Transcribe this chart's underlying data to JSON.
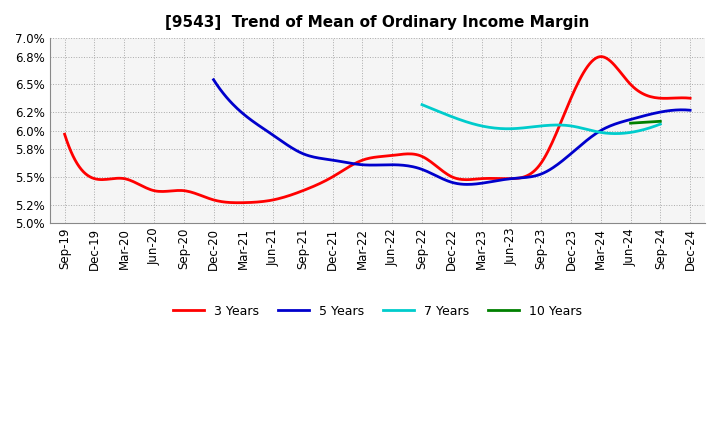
{
  "title": "[9543]  Trend of Mean of Ordinary Income Margin",
  "ylim": [
    0.05,
    0.07
  ],
  "yticks": [
    0.05,
    0.052,
    0.055,
    0.058,
    0.06,
    0.062,
    0.065,
    0.068,
    0.07
  ],
  "ytick_labels": [
    "5.0%",
    "5.2%",
    "5.5%",
    "5.8%",
    "6.0%",
    "6.2%",
    "6.5%",
    "6.8%",
    "7.0%"
  ],
  "x_labels": [
    "Sep-19",
    "Dec-19",
    "Mar-20",
    "Jun-20",
    "Sep-20",
    "Dec-20",
    "Mar-21",
    "Jun-21",
    "Sep-21",
    "Dec-21",
    "Mar-22",
    "Jun-22",
    "Sep-22",
    "Dec-22",
    "Mar-23",
    "Jun-23",
    "Sep-23",
    "Dec-23",
    "Mar-24",
    "Jun-24",
    "Sep-24",
    "Dec-24"
  ],
  "series": [
    {
      "label": "3 Years",
      "color": "#FF0000",
      "data": [
        0.0596,
        0.0548,
        0.0548,
        0.0535,
        0.0535,
        0.0525,
        0.0522,
        0.0525,
        0.0535,
        0.055,
        0.0568,
        0.0573,
        0.0572,
        0.055,
        0.0548,
        0.0548,
        0.0565,
        0.0635,
        0.068,
        0.065,
        0.0635,
        0.0635
      ]
    },
    {
      "label": "5 Years",
      "color": "#0000CC",
      "data": [
        null,
        null,
        null,
        null,
        null,
        0.0655,
        0.0618,
        0.0595,
        0.0575,
        0.0568,
        0.0563,
        0.0563,
        0.0558,
        0.0544,
        0.0543,
        0.0548,
        0.0553,
        0.0575,
        0.06,
        0.0612,
        0.062,
        0.0622
      ]
    },
    {
      "label": "7 Years",
      "color": "#00CCCC",
      "data": [
        null,
        null,
        null,
        null,
        null,
        null,
        null,
        null,
        null,
        null,
        null,
        null,
        0.0628,
        0.0615,
        0.0605,
        0.0602,
        0.0605,
        0.0605,
        0.0598,
        0.0598,
        0.0607,
        null
      ]
    },
    {
      "label": "10 Years",
      "color": "#008000",
      "data": [
        null,
        null,
        null,
        null,
        null,
        null,
        null,
        null,
        null,
        null,
        null,
        null,
        null,
        null,
        null,
        null,
        null,
        null,
        null,
        0.0608,
        0.061,
        null
      ]
    }
  ],
  "bg_color": "#ffffff",
  "plot_bg_color": "#f5f5f5",
  "grid_color": "#aaaaaa",
  "title_fontsize": 11,
  "tick_fontsize": 8.5,
  "legend_fontsize": 9
}
